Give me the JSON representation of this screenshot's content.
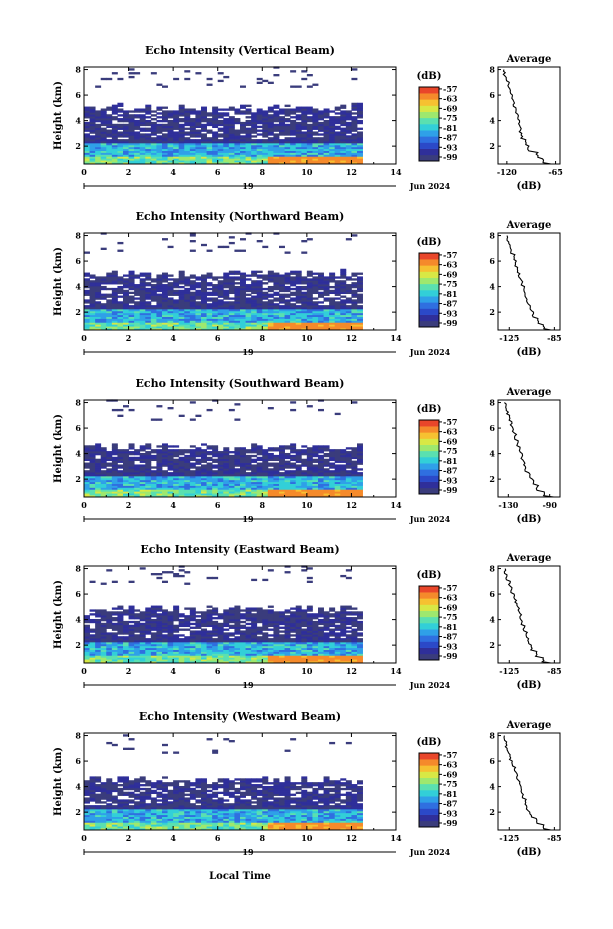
{
  "figure": {
    "xaxis_label": "Local Time",
    "date_label": "Jun 2024",
    "day_label": "19",
    "average_title": "Average",
    "colorbar_unit": "(dB)",
    "ylabel": "Height (km)"
  },
  "chart_data": [
    {
      "type": "heatmap",
      "title": "Echo Intensity (Vertical Beam)",
      "xlabel": "Local Time",
      "ylabel": "Height (km)",
      "xlim": [
        0,
        14
      ],
      "ylim": [
        0.6,
        8.2
      ],
      "xticks": [
        "0",
        "2",
        "4",
        "6",
        "8",
        "10",
        "12",
        "14"
      ],
      "yticks": [
        "2",
        "4",
        "6",
        "8"
      ],
      "colorbar": {
        "label": "(dB)",
        "ticks": [
          "-57",
          "-63",
          "-69",
          "-75",
          "-81",
          "-87",
          "-93",
          "-99"
        ],
        "range": [
          -99,
          -57
        ]
      },
      "data_end_time": 12.5,
      "layer_top_km": 5.0,
      "average_profile": {
        "title": "Average",
        "xlabel": "(dB)",
        "xticks": [
          "-120",
          "-65"
        ],
        "xlim": [
          -130,
          -60
        ],
        "yticks": [
          "2",
          "4",
          "6",
          "8"
        ],
        "height": [
          0.6,
          1.0,
          1.5,
          2.0,
          2.5,
          3.0,
          3.5,
          4.0,
          4.5,
          5.0,
          5.5,
          6.0,
          6.5,
          7.0,
          7.5,
          8.0
        ],
        "values": [
          -70,
          -79,
          -86,
          -96,
          -99,
          -103,
          -105,
          -106,
          -108,
          -110,
          -112,
          -114,
          -116,
          -118,
          -121,
          -123
        ]
      }
    },
    {
      "type": "heatmap",
      "title": "Echo Intensity (Northward Beam)",
      "xlabel": "Local Time",
      "ylabel": "Height (km)",
      "xlim": [
        0,
        14
      ],
      "ylim": [
        0.6,
        8.2
      ],
      "xticks": [
        "0",
        "2",
        "4",
        "6",
        "8",
        "10",
        "12",
        "14"
      ],
      "yticks": [
        "2",
        "4",
        "6",
        "8"
      ],
      "colorbar": {
        "label": "(dB)",
        "ticks": [
          "-57",
          "-63",
          "-69",
          "-75",
          "-81",
          "-87",
          "-93",
          "-99"
        ],
        "range": [
          -99,
          -57
        ]
      },
      "data_end_time": 12.5,
      "layer_top_km": 5.0,
      "average_profile": {
        "title": "Average",
        "xlabel": "(dB)",
        "xticks": [
          "-125",
          "-85"
        ],
        "xlim": [
          -135,
          -80
        ],
        "yticks": [
          "2",
          "4",
          "6",
          "8"
        ],
        "height": [
          0.6,
          1.0,
          1.5,
          2.0,
          2.5,
          3.0,
          3.5,
          4.0,
          4.5,
          5.0,
          5.5,
          6.0,
          6.5,
          7.0,
          7.5,
          8.0
        ],
        "values": [
          -88,
          -94,
          -100,
          -104,
          -106,
          -109,
          -111,
          -112,
          -114,
          -116,
          -118,
          -119,
          -121,
          -123,
          -125,
          -127
        ]
      }
    },
    {
      "type": "heatmap",
      "title": "Echo Intensity (Southward Beam)",
      "xlabel": "Local Time",
      "ylabel": "Height (km)",
      "xlim": [
        0,
        14
      ],
      "ylim": [
        0.6,
        8.2
      ],
      "xticks": [
        "0",
        "2",
        "4",
        "6",
        "8",
        "10",
        "12",
        "14"
      ],
      "yticks": [
        "2",
        "4",
        "6",
        "8"
      ],
      "colorbar": {
        "label": "(dB)",
        "ticks": [
          "-57",
          "-63",
          "-69",
          "-75",
          "-81",
          "-87",
          "-93",
          "-99"
        ],
        "range": [
          -99,
          -57
        ]
      },
      "data_end_time": 12.5,
      "layer_top_km": 4.5,
      "average_profile": {
        "title": "Average",
        "xlabel": "(dB)",
        "xticks": [
          "-130",
          "-90"
        ],
        "xlim": [
          -140,
          -80
        ],
        "yticks": [
          "2",
          "4",
          "6",
          "8"
        ],
        "height": [
          0.6,
          1.0,
          1.5,
          2.0,
          2.5,
          3.0,
          3.5,
          4.0,
          4.5,
          5.0,
          5.5,
          6.0,
          6.5,
          7.0,
          7.5,
          8.0
        ],
        "values": [
          -86,
          -95,
          -102,
          -106,
          -110,
          -113,
          -115,
          -117,
          -119,
          -121,
          -123,
          -125,
          -127,
          -129,
          -131,
          -133
        ]
      }
    },
    {
      "type": "heatmap",
      "title": "Echo Intensity (Eastward Beam)",
      "xlabel": "Local Time",
      "ylabel": "Height (km)",
      "xlim": [
        0,
        14
      ],
      "ylim": [
        0.6,
        8.2
      ],
      "xticks": [
        "0",
        "2",
        "4",
        "6",
        "8",
        "10",
        "12",
        "14"
      ],
      "yticks": [
        "2",
        "4",
        "6",
        "8"
      ],
      "colorbar": {
        "label": "(dB)",
        "ticks": [
          "-57",
          "-63",
          "-69",
          "-75",
          "-81",
          "-87",
          "-93",
          "-99"
        ],
        "range": [
          -99,
          -57
        ]
      },
      "data_end_time": 12.5,
      "layer_top_km": 4.8,
      "average_profile": {
        "title": "Average",
        "xlabel": "(dB)",
        "xticks": [
          "-125",
          "-85"
        ],
        "xlim": [
          -135,
          -80
        ],
        "yticks": [
          "2",
          "4",
          "6",
          "8"
        ],
        "height": [
          0.6,
          1.0,
          1.5,
          2.0,
          2.5,
          3.0,
          3.5,
          4.0,
          4.5,
          5.0,
          5.5,
          6.0,
          6.5,
          7.0,
          7.5,
          8.0
        ],
        "values": [
          -88,
          -95,
          -101,
          -105,
          -108,
          -110,
          -112,
          -114,
          -115,
          -117,
          -119,
          -121,
          -123,
          -125,
          -127,
          -129
        ]
      }
    },
    {
      "type": "heatmap",
      "title": "Echo Intensity (Westward Beam)",
      "xlabel": "Local Time",
      "ylabel": "Height (km)",
      "xlim": [
        0,
        14
      ],
      "ylim": [
        0.6,
        8.2
      ],
      "xticks": [
        "0",
        "2",
        "4",
        "6",
        "8",
        "10",
        "12",
        "14"
      ],
      "yticks": [
        "2",
        "4",
        "6",
        "8"
      ],
      "colorbar": {
        "label": "(dB)",
        "ticks": [
          "-57",
          "-63",
          "-69",
          "-75",
          "-81",
          "-87",
          "-93",
          "-99"
        ],
        "range": [
          -99,
          -57
        ]
      },
      "data_end_time": 12.5,
      "layer_top_km": 4.5,
      "average_profile": {
        "title": "Average",
        "xlabel": "(dB)",
        "xticks": [
          "-125",
          "-85"
        ],
        "xlim": [
          -135,
          -80
        ],
        "yticks": [
          "2",
          "4",
          "6",
          "8"
        ],
        "height": [
          0.6,
          1.0,
          1.5,
          2.0,
          2.5,
          3.0,
          3.5,
          4.0,
          4.5,
          5.0,
          5.5,
          6.0,
          6.5,
          7.0,
          7.5,
          8.0
        ],
        "values": [
          -88,
          -95,
          -101,
          -106,
          -109,
          -111,
          -113,
          -114,
          -116,
          -118,
          -120,
          -122,
          -124,
          -126,
          -128,
          -130
        ]
      }
    }
  ]
}
